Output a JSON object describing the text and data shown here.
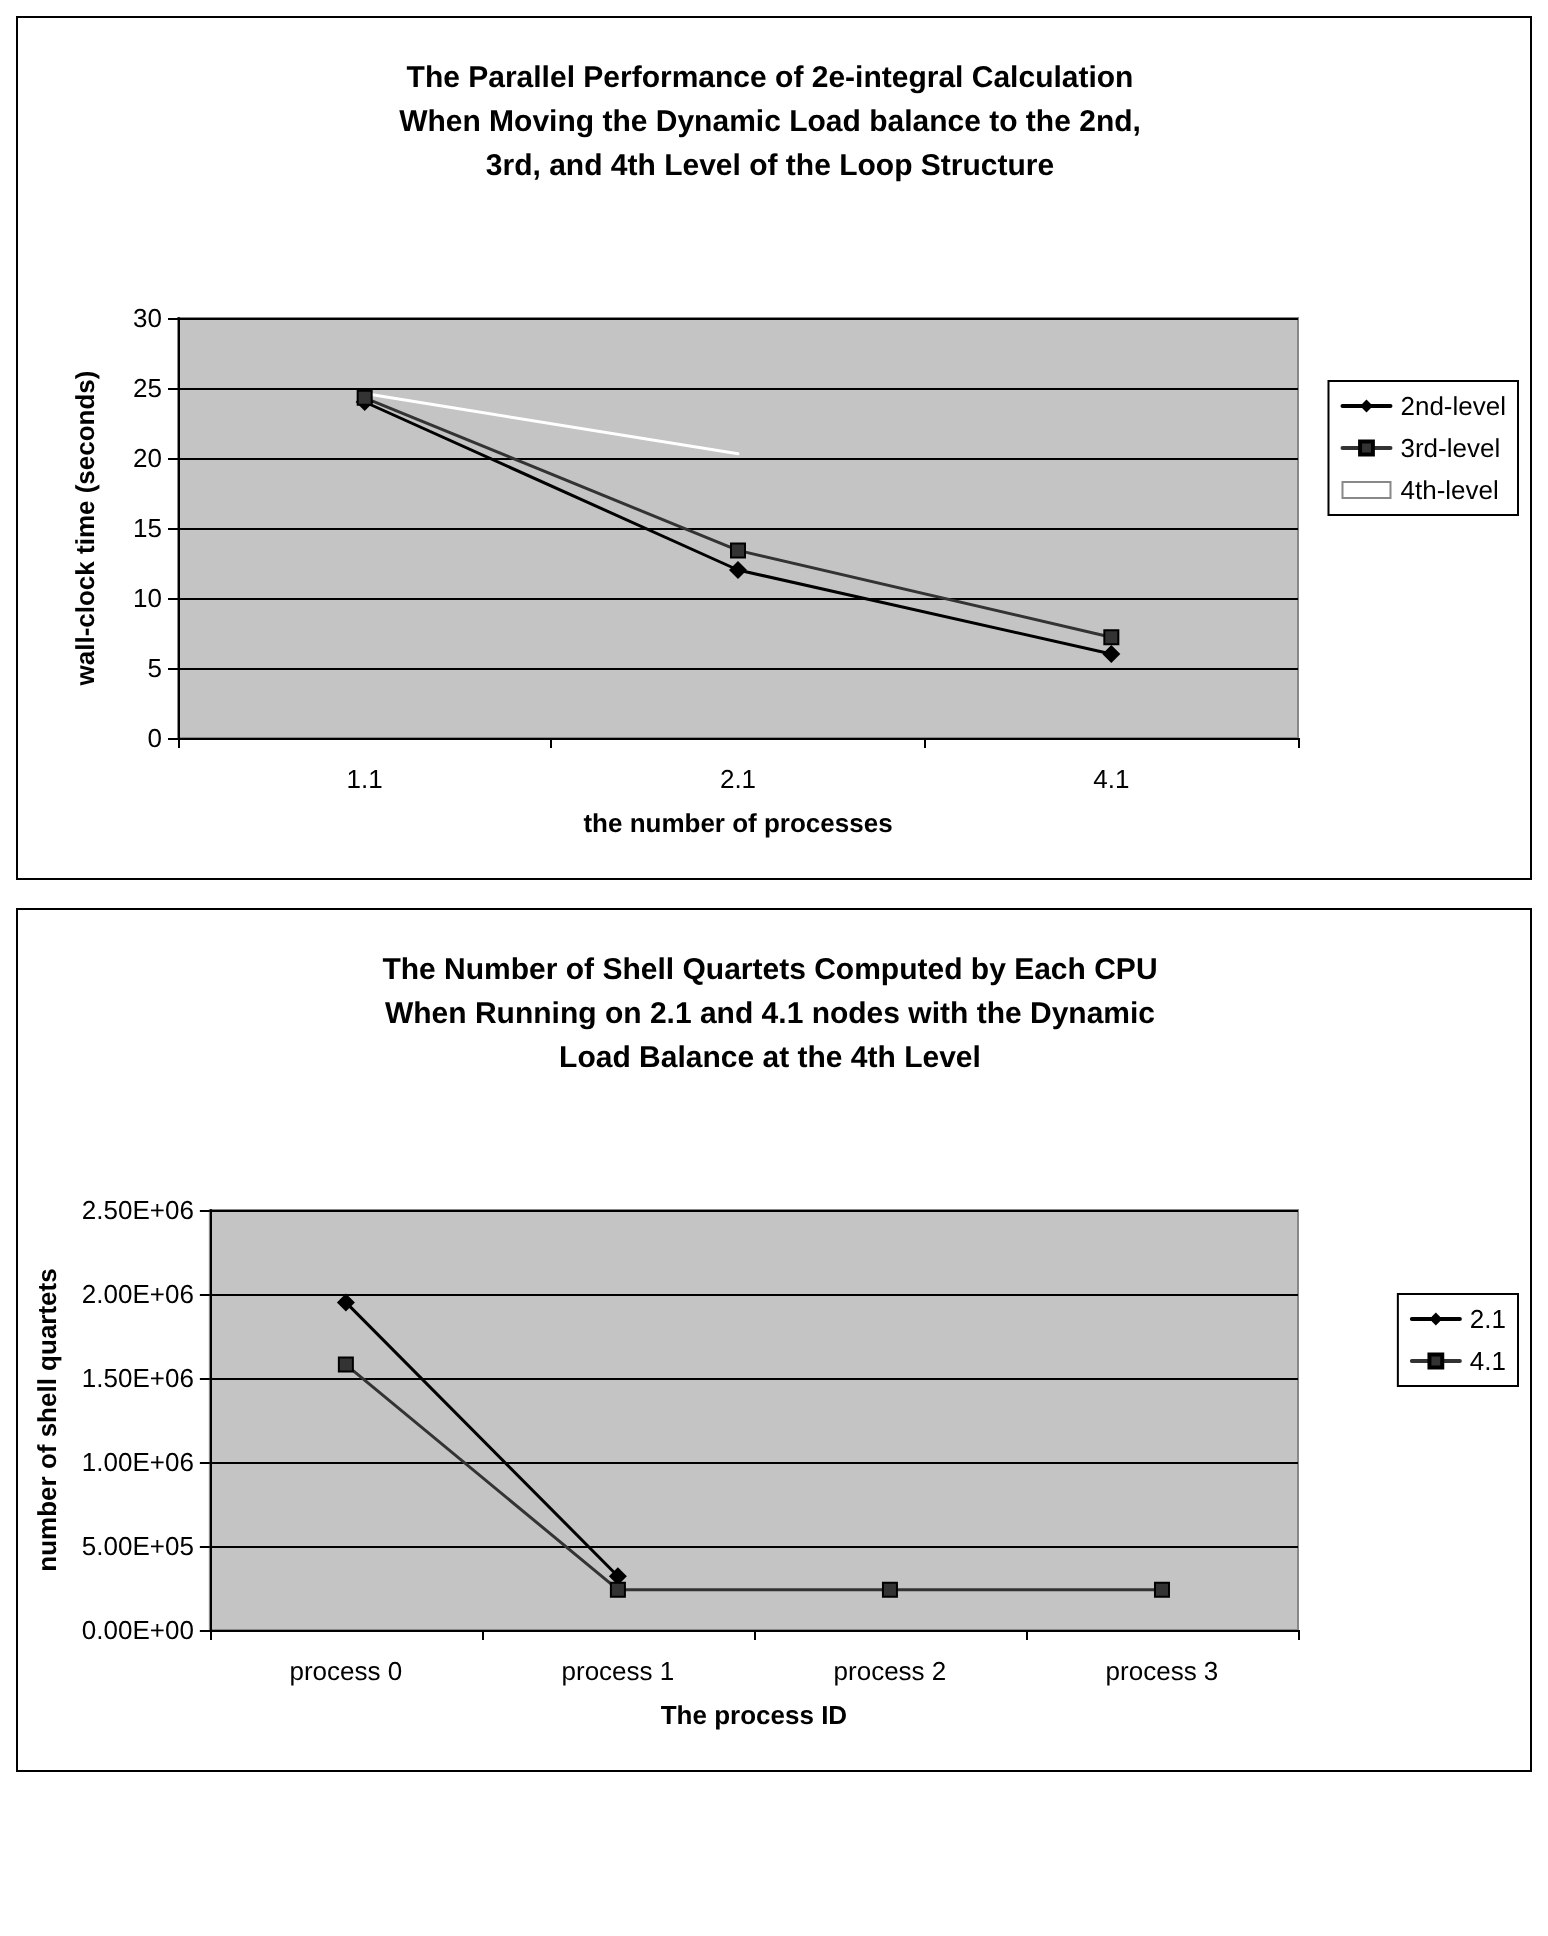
{
  "chart_data": [
    {
      "type": "line",
      "title": "The Parallel Performance of 2e-integral Calculation\nWhen Moving the Dynamic Load balance to the 2nd,\n3rd, and 4th Level of the Loop Structure",
      "xlabel": "the number of processes",
      "ylabel": "wall-clock time (seconds)",
      "categories": [
        "1.1",
        "2.1",
        "4.1"
      ],
      "ylim": [
        0,
        30
      ],
      "yticks": [
        0,
        5,
        10,
        15,
        20,
        25,
        30
      ],
      "grid": "y",
      "legend": "right",
      "line_style": "solid",
      "series": [
        {
          "name": "2nd-level",
          "color": "#000000",
          "marker": "diamond",
          "values": [
            24,
            12,
            6
          ]
        },
        {
          "name": "3rd-level",
          "color": "#333333",
          "marker": "square",
          "values": [
            24.3,
            13.4,
            7.2
          ]
        },
        {
          "name": "4th-level",
          "color": "#ffffff",
          "marker": "none",
          "values": [
            24.6,
            20.3,
            null
          ]
        }
      ]
    },
    {
      "type": "line",
      "title": "The Number of Shell Quartets Computed by Each CPU\nWhen Running on 2.1 and 4.1 nodes with the Dynamic\nLoad Balance at the 4th Level",
      "xlabel": "The process ID",
      "ylabel": "number of shell quartets",
      "categories": [
        "process 0",
        "process 1",
        "process 2",
        "process 3"
      ],
      "ylim": [
        0,
        2500000
      ],
      "yticks": [
        {
          "value": 0,
          "label": "0.00E+00"
        },
        {
          "value": 500000,
          "label": "5.00E+05"
        },
        {
          "value": 1000000,
          "label": "1.00E+06"
        },
        {
          "value": 1500000,
          "label": "1.50E+06"
        },
        {
          "value": 2000000,
          "label": "2.00E+06"
        },
        {
          "value": 2500000,
          "label": "2.50E+06"
        }
      ],
      "grid": "y",
      "legend": "right",
      "line_style": "solid",
      "series": [
        {
          "name": "2.1",
          "color": "#000000",
          "marker": "diamond",
          "values": [
            1950000,
            320000,
            null,
            null
          ]
        },
        {
          "name": "4.1",
          "color": "#333333",
          "marker": "square",
          "values": [
            1580000,
            240000,
            240000,
            240000
          ]
        }
      ]
    }
  ]
}
